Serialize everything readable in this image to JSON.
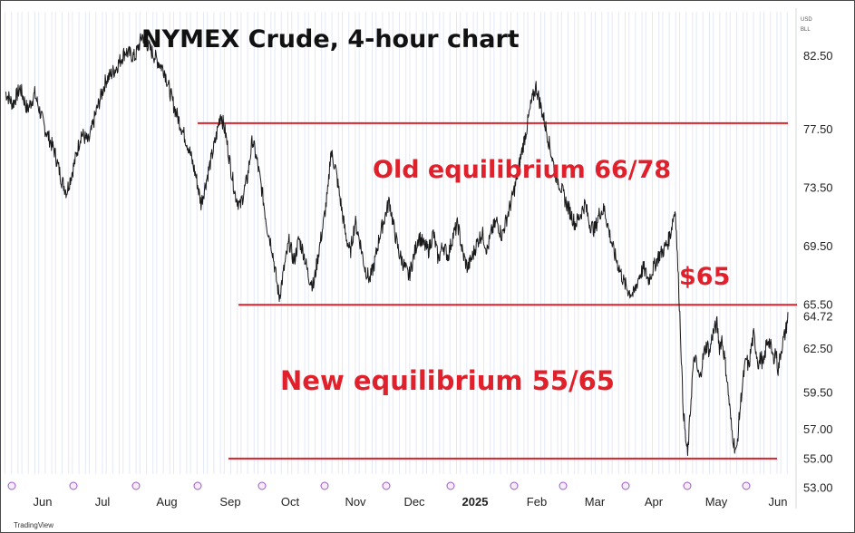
{
  "chart_data": {
    "type": "line",
    "title": "NYMEX Crude, 4-hour chart",
    "currency_label": "USD",
    "unit_label": "BLL",
    "watermark": "TradingView",
    "ylim": [
      53.0,
      85.5
    ],
    "y_ticks": [
      "82.50",
      "77.50",
      "73.50",
      "69.50",
      "65.50",
      "62.50",
      "59.50",
      "57.00",
      "55.00",
      "53.00"
    ],
    "last_price_label": "64.72",
    "last_price": 64.72,
    "x_ticks": [
      "Jun",
      "Jul",
      "Aug",
      "Sep",
      "Oct",
      "Nov",
      "Dec",
      "2025",
      "Feb",
      "Mar",
      "Apr",
      "May",
      "Jun"
    ],
    "x_tick_bold": "2025",
    "price_path": [
      [
        0,
        80.0
      ],
      [
        3,
        79.2
      ],
      [
        6,
        80.3
      ],
      [
        9,
        78.8
      ],
      [
        12,
        79.9
      ],
      [
        16,
        77.6
      ],
      [
        20,
        76.0
      ],
      [
        23,
        74.0
      ],
      [
        25,
        73.2
      ],
      [
        28,
        75.0
      ],
      [
        31,
        77.2
      ],
      [
        34,
        76.6
      ],
      [
        37,
        78.6
      ],
      [
        41,
        80.8
      ],
      [
        45,
        81.6
      ],
      [
        49,
        82.8
      ],
      [
        53,
        82.4
      ],
      [
        56,
        83.9
      ],
      [
        59,
        83.0
      ],
      [
        62,
        82.2
      ],
      [
        65,
        81.5
      ],
      [
        67,
        80.2
      ],
      [
        69,
        79.0
      ],
      [
        72,
        77.6
      ],
      [
        75,
        76.2
      ],
      [
        78,
        74.2
      ],
      [
        80,
        72.4
      ],
      [
        83,
        74.6
      ],
      [
        86,
        76.8
      ],
      [
        88,
        78.6
      ],
      [
        90,
        77.2
      ],
      [
        92,
        75.0
      ],
      [
        94,
        73.0
      ],
      [
        96,
        72.2
      ],
      [
        99,
        74.2
      ],
      [
        101,
        76.8
      ],
      [
        103,
        75.2
      ],
      [
        105,
        73.2
      ],
      [
        107,
        70.8
      ],
      [
        109,
        69.4
      ],
      [
        111,
        67.0
      ],
      [
        112,
        66.0
      ],
      [
        114,
        68.0
      ],
      [
        116,
        69.8
      ],
      [
        118,
        68.4
      ],
      [
        120,
        70.0
      ],
      [
        122,
        69.0
      ],
      [
        124,
        67.4
      ],
      [
        126,
        66.8
      ],
      [
        128,
        69.0
      ],
      [
        130,
        71.0
      ],
      [
        132,
        73.4
      ],
      [
        133,
        76.0
      ],
      [
        135,
        74.8
      ],
      [
        137,
        72.6
      ],
      [
        139,
        70.4
      ],
      [
        141,
        69.0
      ],
      [
        143,
        71.2
      ],
      [
        145,
        69.8
      ],
      [
        147,
        68.0
      ],
      [
        149,
        67.2
      ],
      [
        151,
        68.4
      ],
      [
        153,
        70.2
      ],
      [
        155,
        71.4
      ],
      [
        157,
        72.6
      ],
      [
        159,
        70.6
      ],
      [
        161,
        69.0
      ],
      [
        163,
        68.2
      ],
      [
        165,
        67.4
      ],
      [
        167,
        68.8
      ],
      [
        169,
        70.2
      ],
      [
        171,
        69.6
      ],
      [
        173,
        69.2
      ],
      [
        175,
        70.4
      ],
      [
        177,
        68.6
      ],
      [
        179,
        69.6
      ],
      [
        181,
        68.8
      ],
      [
        183,
        70.2
      ],
      [
        185,
        71.0
      ],
      [
        187,
        69.0
      ],
      [
        189,
        68.0
      ],
      [
        191,
        68.8
      ],
      [
        193,
        69.8
      ],
      [
        195,
        70.4
      ],
      [
        197,
        69.2
      ],
      [
        199,
        70.6
      ],
      [
        201,
        71.2
      ],
      [
        203,
        70.2
      ],
      [
        205,
        71.4
      ],
      [
        207,
        72.6
      ],
      [
        209,
        74.0
      ],
      [
        211,
        75.8
      ],
      [
        213,
        77.4
      ],
      [
        215,
        79.2
      ],
      [
        217,
        80.4
      ],
      [
        219,
        79.0
      ],
      [
        221,
        77.6
      ],
      [
        223,
        76.0
      ],
      [
        225,
        74.4
      ],
      [
        227,
        73.6
      ],
      [
        229,
        72.6
      ],
      [
        231,
        71.8
      ],
      [
        233,
        71.0
      ],
      [
        235,
        71.6
      ],
      [
        237,
        72.4
      ],
      [
        239,
        71.0
      ],
      [
        241,
        70.6
      ],
      [
        243,
        71.8
      ],
      [
        245,
        72.0
      ],
      [
        247,
        70.4
      ],
      [
        249,
        69.0
      ],
      [
        251,
        68.0
      ],
      [
        253,
        67.0
      ],
      [
        255,
        66.4
      ],
      [
        257,
        66.2
      ],
      [
        259,
        67.4
      ],
      [
        261,
        68.0
      ],
      [
        263,
        67.2
      ],
      [
        265,
        68.0
      ],
      [
        267,
        68.8
      ],
      [
        269,
        69.2
      ],
      [
        271,
        69.8
      ],
      [
        272,
        70.4
      ],
      [
        273,
        71.4
      ],
      [
        274,
        72.0
      ],
      [
        275,
        68.0
      ],
      [
        276,
        64.0
      ],
      [
        277,
        59.0
      ],
      [
        278,
        56.6
      ],
      [
        279,
        55.2
      ],
      [
        280,
        58.0
      ],
      [
        281,
        60.8
      ],
      [
        282,
        62.0
      ],
      [
        283,
        61.0
      ],
      [
        284,
        60.4
      ],
      [
        285,
        61.6
      ],
      [
        286,
        62.4
      ],
      [
        287,
        62.8
      ],
      [
        288,
        62.2
      ],
      [
        289,
        63.4
      ],
      [
        290,
        63.8
      ],
      [
        291,
        64.2
      ],
      [
        292,
        62.6
      ],
      [
        293,
        63.2
      ],
      [
        294,
        62.0
      ],
      [
        295,
        60.6
      ],
      [
        296,
        58.8
      ],
      [
        297,
        57.0
      ],
      [
        298,
        56.0
      ],
      [
        299,
        55.4
      ],
      [
        300,
        57.6
      ],
      [
        301,
        59.4
      ],
      [
        302,
        60.8
      ],
      [
        303,
        61.8
      ],
      [
        304,
        61.2
      ],
      [
        305,
        62.6
      ],
      [
        306,
        63.4
      ],
      [
        307,
        62.4
      ],
      [
        308,
        61.4
      ],
      [
        309,
        62.0
      ],
      [
        310,
        61.2
      ],
      [
        311,
        62.6
      ],
      [
        312,
        63.2
      ],
      [
        313,
        62.6
      ],
      [
        314,
        61.8
      ],
      [
        315,
        62.4
      ],
      [
        316,
        61.0
      ],
      [
        317,
        62.2
      ],
      [
        318,
        63.0
      ],
      [
        319,
        63.6
      ],
      [
        320,
        64.72
      ]
    ],
    "levels": [
      {
        "name": "old-equilibrium-upper",
        "value": 77.9
      },
      {
        "name": "old-equilibrium-lower",
        "value": 65.5
      },
      {
        "name": "new-equilibrium-lower",
        "value": 55.0
      }
    ],
    "annotations": {
      "old_equilibrium": "Old equilibrium 66/78",
      "level_65": "$65",
      "new_equilibrium": "New equilibrium 55/65"
    },
    "colors": {
      "price": "#1a1a1a",
      "level_line": "#e0202a",
      "annotation": "#e0202a",
      "background": "#ffffff",
      "vertical_bands": "#e4e9f7",
      "event_marker": "#9b59d0"
    }
  }
}
